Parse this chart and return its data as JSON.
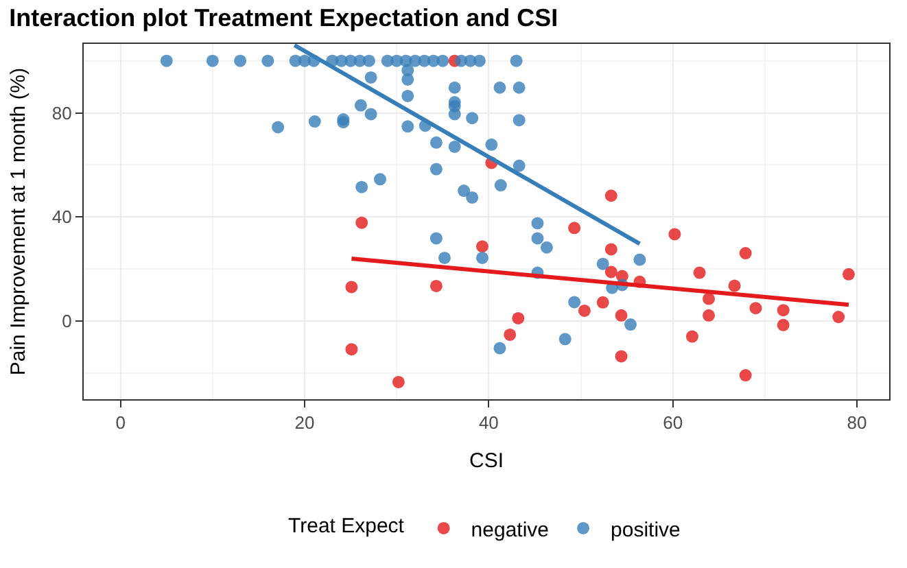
{
  "chart_data": {
    "type": "scatter",
    "title": "Interaction plot Treatment Expectation and CSI",
    "xlabel": "CSI",
    "ylabel": "Pain Improvement at 1 month (%)",
    "legend_title": "Treat Expect",
    "xlim": [
      -4,
      83.5
    ],
    "xticks": [
      0,
      20,
      40,
      60,
      80
    ],
    "ylim": [
      -30,
      106.5
    ],
    "yticks": [
      0,
      40,
      80
    ],
    "grid": true,
    "legend": "bottom",
    "series": [
      {
        "name": "negative",
        "color": "#e41a1c",
        "marker": "circle",
        "x": [
          25.1,
          25.1,
          26.2,
          30.2,
          34.3,
          36.3,
          39.3,
          40.3,
          42.3,
          43.2,
          49.3,
          50.4,
          52.4,
          53.3,
          53.3,
          53.3,
          54.5,
          54.4,
          54.4,
          56.4,
          60.2,
          62.1,
          62.9,
          63.9,
          63.9,
          66.7,
          67.9,
          67.9,
          69.0,
          72.0,
          72.0,
          78.0,
          79.1
        ],
        "values": [
          13.1,
          -10.8,
          37.8,
          -23.4,
          13.5,
          100,
          28.7,
          60.8,
          -5.2,
          1.1,
          35.8,
          4.0,
          7.2,
          48.2,
          27.6,
          18.9,
          17.3,
          2.2,
          -13.5,
          15.1,
          33.4,
          -5.9,
          18.6,
          8.6,
          2.2,
          13.6,
          26.1,
          -20.8,
          5.0,
          4.2,
          -1.5,
          1.6,
          18.0
        ]
      },
      {
        "name": "positive",
        "color": "#377eb8",
        "marker": "circle",
        "x": [
          5,
          10,
          13,
          16,
          19,
          20,
          21,
          23,
          24,
          25,
          26,
          27,
          29,
          30,
          31,
          32,
          33,
          34,
          35,
          37,
          38,
          39,
          43,
          17.1,
          21.1,
          24.2,
          24.2,
          26.1,
          26.2,
          27.2,
          27.2,
          28.2,
          31.2,
          31.2,
          31.2,
          31.2,
          33.1,
          34.3,
          34.3,
          34.3,
          35.2,
          36.3,
          36.3,
          36.3,
          36.3,
          36.3,
          37.3,
          38.2,
          38.2,
          39.3,
          40.3,
          41.2,
          41.3,
          41.2,
          43.3,
          43.3,
          43.3,
          45.3,
          45.3,
          45.3,
          46.3,
          48.3,
          49.3,
          52.4,
          53.4,
          54.5,
          55.4,
          56.4
        ],
        "values": [
          100,
          100,
          100,
          100,
          100,
          100,
          100,
          100,
          100,
          100,
          100,
          100,
          100,
          100,
          100,
          100,
          100,
          100,
          100,
          100,
          100,
          100,
          100,
          74.5,
          76.7,
          76.4,
          77.5,
          82.9,
          51.5,
          93.6,
          79.5,
          54.5,
          96.4,
          92.8,
          86.5,
          74.8,
          75.1,
          68.6,
          58.4,
          31.8,
          24.3,
          89.7,
          84.1,
          82.6,
          79.5,
          67.0,
          50.1,
          78.0,
          47.5,
          24.3,
          67.8,
          89.7,
          52.2,
          -10.4,
          89.7,
          77.2,
          59.7,
          37.6,
          31.8,
          18.6,
          28.3,
          -6.9,
          7.3,
          22.0,
          12.8,
          13.9,
          -1.3,
          23.6
        ]
      },
      {
        "color": "#e41a1c",
        "type": "line",
        "x": [
          25.1,
          79.1
        ],
        "values": [
          24.0,
          6.3
        ]
      },
      {
        "color": "#377eb8",
        "type": "line",
        "x": [
          18.9,
          56.4
        ],
        "values": [
          106,
          29.7
        ]
      }
    ]
  }
}
